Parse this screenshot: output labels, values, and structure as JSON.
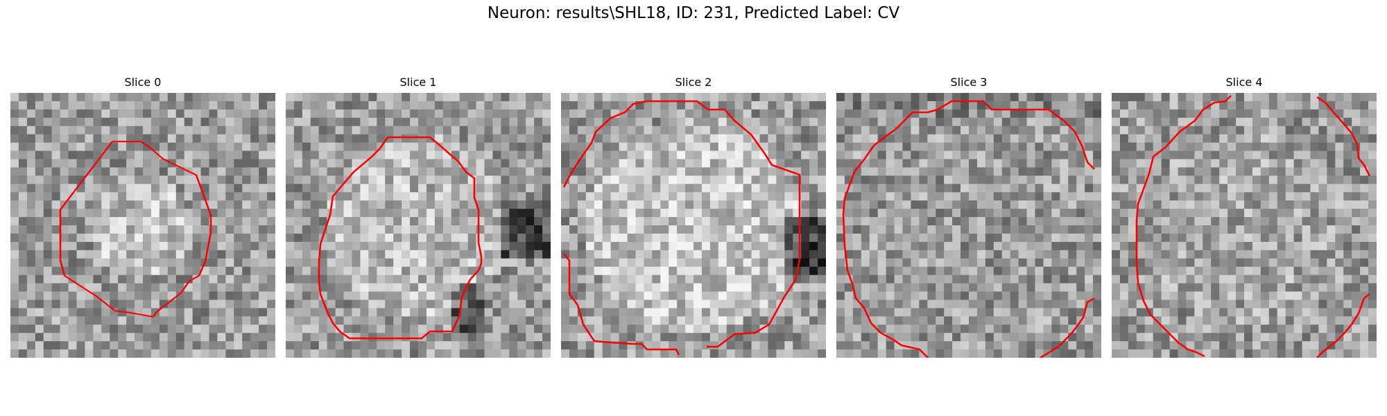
{
  "figure": {
    "title": "Neuron: results\\SHL18, ID: 231, Predicted Label: CV"
  },
  "colors": {
    "contour": "#ff0000"
  },
  "panels": [
    {
      "title": "Slice 0"
    },
    {
      "title": "Slice 1"
    },
    {
      "title": "Slice 2"
    },
    {
      "title": "Slice 3"
    },
    {
      "title": "Slice 4"
    }
  ]
}
